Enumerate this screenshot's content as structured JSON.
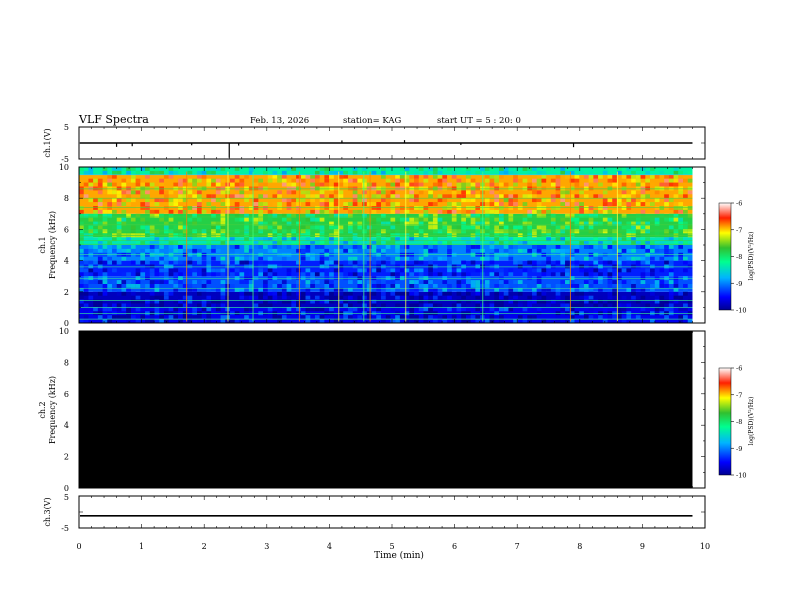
{
  "header": {
    "title": "VLF Spectra",
    "date": "Feb. 13, 2026",
    "station": "station= KAG",
    "start_ut": "start  UT =   5 : 20: 0"
  },
  "x_axis": {
    "label": "Time  (min)",
    "range": [
      0,
      10
    ],
    "ticks": [
      "0",
      "1",
      "2",
      "3",
      "4",
      "5",
      "6",
      "7",
      "8",
      "9",
      "10"
    ]
  },
  "chart_data": [
    {
      "name": "ch1-waveform",
      "type": "line",
      "ylabel": "ch.1(V)",
      "ylim": [
        -5,
        5
      ],
      "ytick_labels": [
        "5",
        "-5"
      ],
      "baseline_value": 0,
      "spikes": [
        {
          "t": 0.6,
          "v": -1.2
        },
        {
          "t": 0.85,
          "v": -1.0
        },
        {
          "t": 1.8,
          "v": -0.7
        },
        {
          "t": 2.4,
          "v": -4.6
        },
        {
          "t": 2.55,
          "v": -0.8
        },
        {
          "t": 4.2,
          "v": 0.8
        },
        {
          "t": 5.2,
          "v": 0.9
        },
        {
          "t": 6.1,
          "v": -0.6
        },
        {
          "t": 7.9,
          "v": -1.3
        }
      ],
      "data_end_min": 9.8
    },
    {
      "name": "ch1-spectrogram",
      "type": "heatmap",
      "ylabel_line1": "ch.1",
      "ylabel_line2": "Frequency  (kHz)",
      "ylim": [
        0,
        10
      ],
      "ytick_labels": [
        "0",
        "2",
        "4",
        "6",
        "8",
        "10"
      ],
      "data_end_min": 9.8,
      "colorbar": {
        "label": "log(PSD)(V²/Hz)",
        "range": [
          -10,
          -6
        ],
        "tick_labels": [
          "-6",
          "-7",
          "-8",
          "-9",
          "-10"
        ]
      },
      "band_levels": [
        {
          "f0": 0,
          "f1": 1,
          "v": -9.6
        },
        {
          "f0": 1,
          "f1": 2,
          "v": -9.8
        },
        {
          "f0": 2,
          "f1": 3,
          "v": -9.2
        },
        {
          "f0": 3,
          "f1": 4,
          "v": -9.4
        },
        {
          "f0": 4,
          "f1": 5,
          "v": -9.0
        },
        {
          "f0": 5,
          "f1": 5.5,
          "v": -8.4
        },
        {
          "f0": 5.5,
          "f1": 7,
          "v": -7.8
        },
        {
          "f0": 7,
          "f1": 9.5,
          "v": -6.9
        },
        {
          "f0": 9.5,
          "f1": 10,
          "v": -8.3
        }
      ],
      "narrowband_lines_khz": [
        0.25,
        0.6,
        1.0,
        1.45,
        2.2,
        2.85,
        3.6,
        4.4,
        5.05,
        5.3,
        5.6,
        5.9,
        6.3,
        6.8,
        7.4,
        8.0,
        8.6,
        9.5
      ],
      "sferic_times_min": [
        1.72,
        2.38,
        2.78,
        3.52,
        4.15,
        4.55,
        4.65,
        5.22,
        6.45,
        7.85,
        8.6
      ]
    },
    {
      "name": "ch2-spectrogram",
      "type": "heatmap",
      "ylabel_line1": "ch.2",
      "ylabel_line2": "Frequency  (kHz)",
      "ylim": [
        0,
        10
      ],
      "ytick_labels": [
        "0",
        "2",
        "4",
        "6",
        "8",
        "10"
      ],
      "data_end_min": 9.8,
      "fill": "no-signal (black)",
      "colorbar": {
        "label": "log(PSD)(V²/Hz)",
        "range": [
          -10,
          -6
        ],
        "tick_labels": [
          "-6",
          "-7",
          "-8",
          "-9",
          "-10"
        ]
      }
    },
    {
      "name": "ch3-waveform",
      "type": "line",
      "ylabel": "ch.3(V)",
      "ylim": [
        -5,
        5
      ],
      "ytick_labels": [
        "5",
        "-5"
      ],
      "baseline_value": -1.2,
      "data_end_min": 9.8
    }
  ]
}
